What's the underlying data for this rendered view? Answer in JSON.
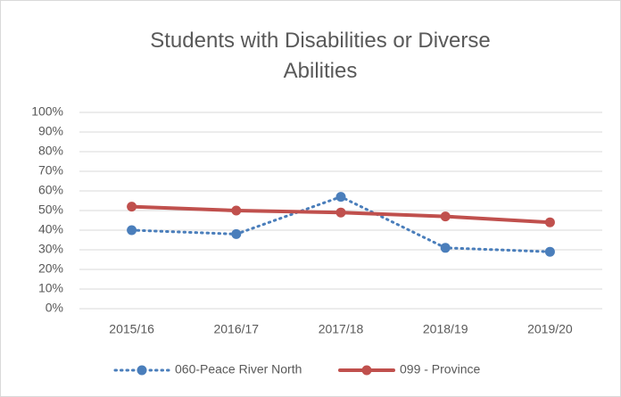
{
  "chart_data": {
    "type": "line",
    "title": "Students with Disabilities or Diverse Abilities",
    "categories": [
      "2015/16",
      "2016/17",
      "2017/18",
      "2018/19",
      "2019/20"
    ],
    "series": [
      {
        "name": "060-Peace River North",
        "color": "#4a7ebb",
        "dash": "dotted",
        "values": [
          40,
          38,
          57,
          31,
          29
        ]
      },
      {
        "name": "099 - Province",
        "color": "#c0504d",
        "dash": "solid",
        "values": [
          52,
          50,
          49,
          47,
          44
        ]
      }
    ],
    "ylim": [
      0,
      100
    ],
    "yticks": [
      {
        "value": 0,
        "label": "0%"
      },
      {
        "value": 10,
        "label": "10%"
      },
      {
        "value": 20,
        "label": "20%"
      },
      {
        "value": 30,
        "label": "30%"
      },
      {
        "value": 40,
        "label": "40%"
      },
      {
        "value": 50,
        "label": "50%"
      },
      {
        "value": 60,
        "label": "60%"
      },
      {
        "value": 70,
        "label": "70%"
      },
      {
        "value": 80,
        "label": "80%"
      },
      {
        "value": 90,
        "label": "90%"
      },
      {
        "value": 100,
        "label": "100%"
      }
    ],
    "grid": true,
    "legend": "bottom"
  }
}
